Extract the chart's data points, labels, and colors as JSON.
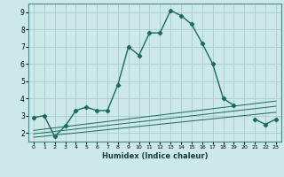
{
  "title": "",
  "xlabel": "Humidex (Indice chaleur)",
  "ylabel": "",
  "background_color": "#cce8e8",
  "grid_color": "#aacccc",
  "line_color": "#1a6b5a",
  "x_data": [
    0,
    1,
    2,
    3,
    4,
    5,
    6,
    7,
    8,
    9,
    10,
    11,
    12,
    13,
    14,
    15,
    16,
    17,
    18,
    19,
    20,
    21,
    22,
    23
  ],
  "series1": [
    2.9,
    3.0,
    1.8,
    2.4,
    3.3,
    3.5,
    3.3,
    3.3,
    4.8,
    7.0,
    6.5,
    7.8,
    7.8,
    9.1,
    8.8,
    8.3,
    7.2,
    6.0,
    4.0,
    3.6,
    null,
    2.8,
    2.5,
    2.8
  ],
  "line1_x": [
    0,
    23
  ],
  "line1_y": [
    2.15,
    3.85
  ],
  "line2_x": [
    0,
    23
  ],
  "line2_y": [
    1.95,
    3.55
  ],
  "line3_x": [
    0,
    23
  ],
  "line3_y": [
    1.75,
    3.2
  ],
  "ylim": [
    1.5,
    9.5
  ],
  "xlim": [
    -0.5,
    23.5
  ],
  "yticks": [
    2,
    3,
    4,
    5,
    6,
    7,
    8,
    9
  ],
  "xticks": [
    0,
    1,
    2,
    3,
    4,
    5,
    6,
    7,
    8,
    9,
    10,
    11,
    12,
    13,
    14,
    15,
    16,
    17,
    18,
    19,
    20,
    21,
    22,
    23
  ],
  "xtick_labels": [
    "0",
    "1",
    "2",
    "3",
    "4",
    "5",
    "6",
    "7",
    "8",
    "9",
    "10",
    "11",
    "12",
    "13",
    "14",
    "15",
    "16",
    "17",
    "18",
    "19",
    "20",
    "21",
    "22",
    "23"
  ]
}
